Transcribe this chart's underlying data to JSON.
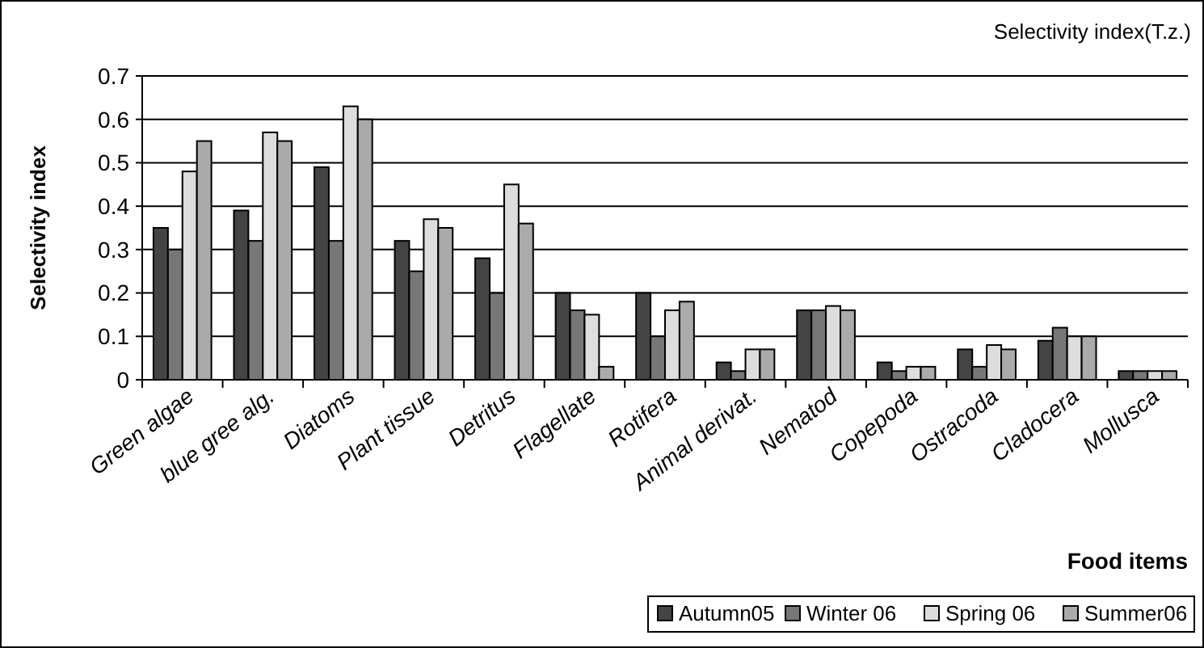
{
  "chart_data": {
    "type": "bar",
    "title": "Selectivity index(T.z.)",
    "xlabel": "Food items",
    "ylabel": "Selectivity index",
    "categories": [
      "Green algae",
      "blue gree alg.",
      "Diatoms",
      "Plant tissue",
      "Detritus",
      "Flagellate",
      "Rotifera",
      "Animal derivat.",
      "Nematod",
      "Copepoda",
      "Ostracoda",
      "Cladocera",
      "Mollusca"
    ],
    "series": [
      {
        "name": "Autumn05",
        "color": "#444444",
        "values": [
          0.35,
          0.39,
          0.49,
          0.32,
          0.28,
          0.2,
          0.2,
          0.04,
          0.16,
          0.04,
          0.07,
          0.09,
          0.02
        ]
      },
      {
        "name": "Winter 06",
        "color": "#777777",
        "values": [
          0.3,
          0.32,
          0.32,
          0.25,
          0.2,
          0.16,
          0.1,
          0.02,
          0.16,
          0.02,
          0.03,
          0.12,
          0.02
        ]
      },
      {
        "name": "Spring 06",
        "color": "#dddddd",
        "values": [
          0.48,
          0.57,
          0.63,
          0.37,
          0.45,
          0.15,
          0.16,
          0.07,
          0.17,
          0.03,
          0.08,
          0.1,
          0.02
        ]
      },
      {
        "name": "Summer06",
        "color": "#aaaaaa",
        "values": [
          0.55,
          0.55,
          0.6,
          0.35,
          0.36,
          0.03,
          0.18,
          0.07,
          0.16,
          0.03,
          0.07,
          0.1,
          0.02
        ]
      }
    ],
    "ylim": [
      0,
      0.7
    ],
    "yticks": [
      0,
      0.1,
      0.2,
      0.3,
      0.4,
      0.5,
      0.6,
      0.7
    ],
    "grid": "y",
    "legend": "bottom right"
  }
}
